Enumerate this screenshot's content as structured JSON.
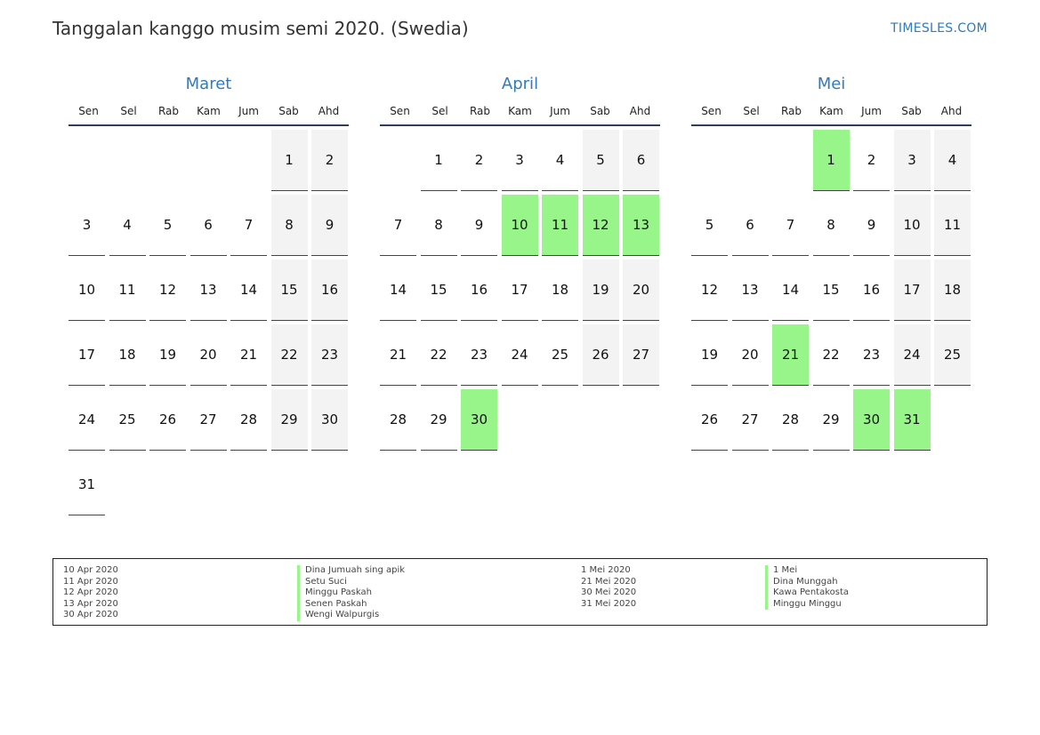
{
  "header": {
    "title": "Tanggalan kanggo musim semi 2020. (Swedia)",
    "brand": "TIMESLES.COM"
  },
  "weekdays": [
    "Sen",
    "Sel",
    "Rab",
    "Kam",
    "Jum",
    "Sab",
    "Ahd"
  ],
  "months": [
    {
      "name": "Maret",
      "first_weekday": 6,
      "days": 31,
      "holidays": []
    },
    {
      "name": "April",
      "first_weekday": 2,
      "days": 30,
      "holidays": [
        10,
        11,
        12,
        13,
        30
      ]
    },
    {
      "name": "Mei",
      "first_weekday": 4,
      "days": 31,
      "holidays": [
        1,
        21,
        30,
        31
      ]
    }
  ],
  "colors": {
    "holiday": "#97f58a",
    "weekend": "#f3f3f3",
    "month_title": "#2e7bbf"
  },
  "legend": {
    "left": [
      {
        "date": "10 Apr 2020",
        "name": "Dina Jumuah sing apik"
      },
      {
        "date": "11 Apr 2020",
        "name": "Setu Suci"
      },
      {
        "date": "12 Apr 2020",
        "name": "Minggu Paskah"
      },
      {
        "date": "13 Apr 2020",
        "name": "Senen Paskah"
      },
      {
        "date": "30 Apr 2020",
        "name": "Wengi Walpurgis"
      }
    ],
    "right": [
      {
        "date": "1 Mei 2020",
        "name": "1 Mei"
      },
      {
        "date": "21 Mei 2020",
        "name": "Dina Munggah"
      },
      {
        "date": "30 Mei 2020",
        "name": "Kawa Pentakosta"
      },
      {
        "date": "31 Mei 2020",
        "name": "Minggu Minggu"
      }
    ]
  }
}
